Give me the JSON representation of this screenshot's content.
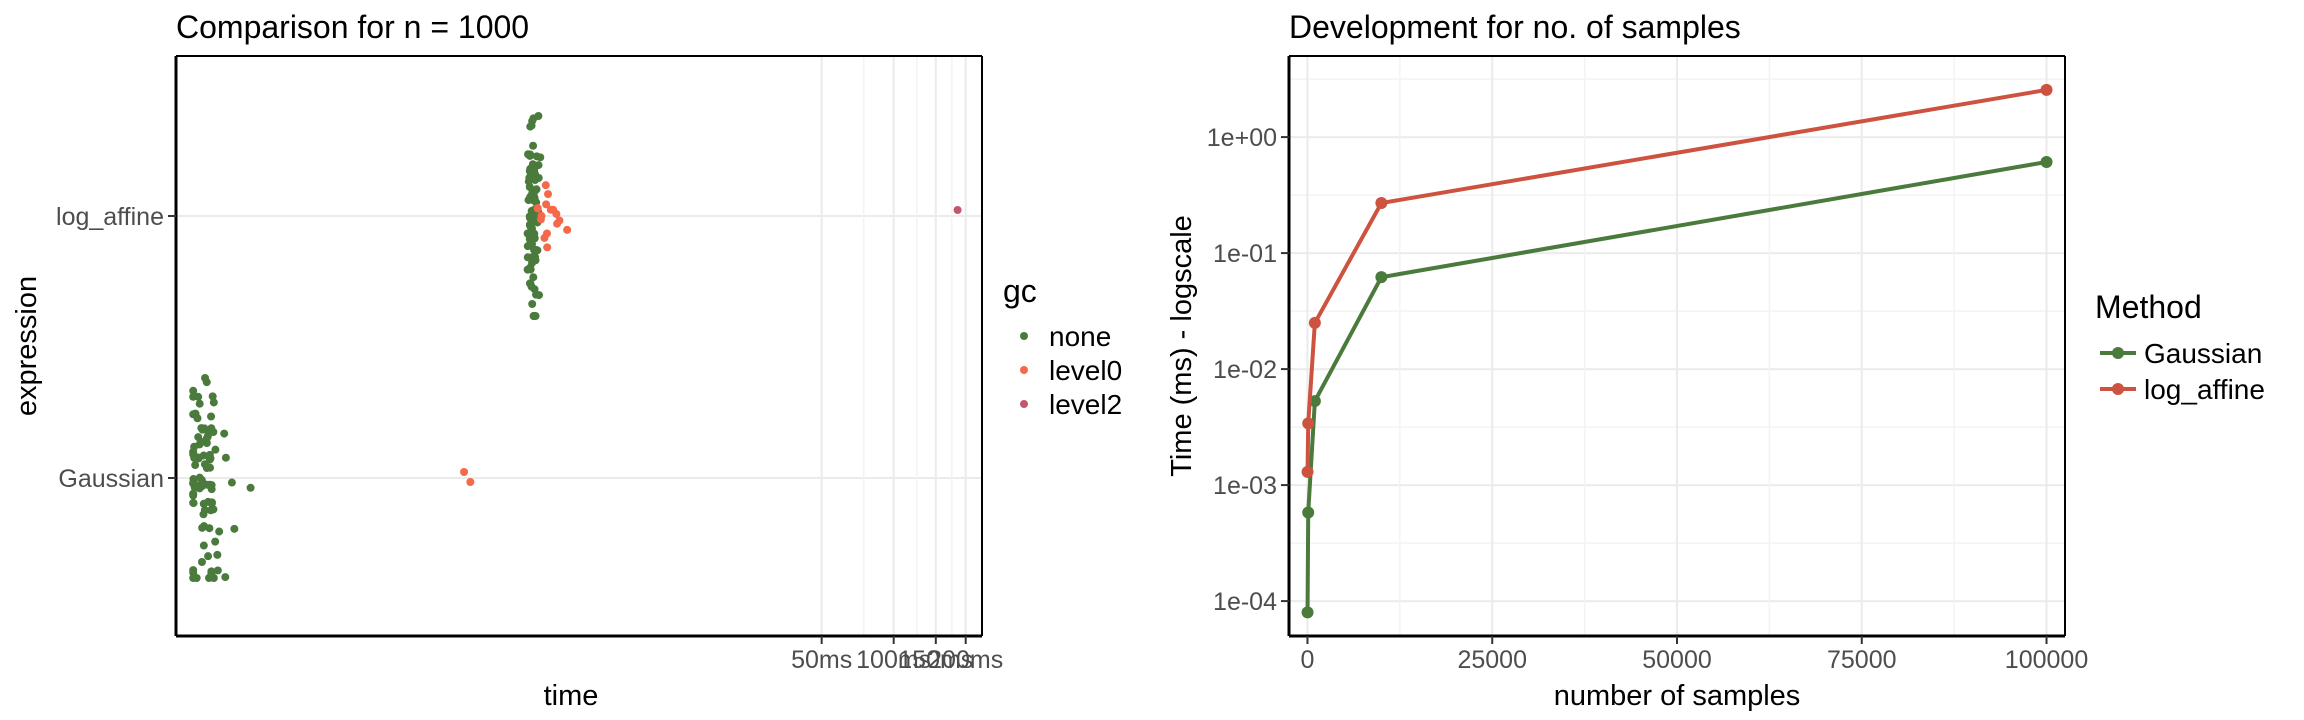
{
  "colors": {
    "none": "#4a7a3c",
    "level0": "#f4694a",
    "level2": "#c2566e",
    "Gaussian": "#4a7a3c",
    "log_affine": "#cd5340",
    "grid": "#ebebeb"
  },
  "chart_data": [
    {
      "type": "scatter",
      "subtype": "beeswarm",
      "title": "Comparison for n = 1000",
      "xlabel": "time",
      "ylabel": "expression",
      "x_scale": "log",
      "categories": [
        "Gaussian",
        "log_affine"
      ],
      "x_ticks": [
        "50ms",
        "100ms",
        "150ms",
        "200ms"
      ],
      "x_tick_values_ms": [
        50,
        100,
        150,
        200
      ],
      "x_range_ms": [
        0.1,
        234
      ],
      "grid": true,
      "legend_position": "right",
      "legend": {
        "title": "gc",
        "items": [
          "none",
          "level0",
          "level2"
        ]
      },
      "series": [
        {
          "category": "Gaussian",
          "gc": "none",
          "count": 95,
          "median_ms": 0.13,
          "min_ms": 0.118,
          "max_ms": 0.205
        },
        {
          "category": "Gaussian",
          "gc": "level0",
          "values_ms": [
            1.6,
            1.7
          ]
        },
        {
          "category": "log_affine",
          "gc": "none",
          "count": 90,
          "median_ms": 3.1,
          "min_ms": 2.95,
          "max_ms": 3.4
        },
        {
          "category": "log_affine",
          "gc": "level0",
          "count": 16,
          "median_ms": 3.75,
          "min_ms": 3.25,
          "max_ms": 5.0
        },
        {
          "category": "log_affine",
          "gc": "level2",
          "values_ms": [
            185
          ]
        }
      ]
    },
    {
      "type": "line",
      "title": "Development for no. of samples",
      "xlabel": "number of samples",
      "ylabel": "Time (ms) - logscale",
      "y_scale": "log",
      "x_range": [
        -2500,
        102500
      ],
      "y_range": [
        5e-05,
        5
      ],
      "x_ticks": [
        "0",
        "25000",
        "50000",
        "75000",
        "100000"
      ],
      "x_tick_values": [
        0,
        25000,
        50000,
        75000,
        100000
      ],
      "y_ticks": [
        "1e-04",
        "1e-03",
        "1e-02",
        "1e-01",
        "1e+00"
      ],
      "y_tick_values": [
        0.0001,
        0.001,
        0.01,
        0.1,
        1
      ],
      "grid": true,
      "legend_position": "right",
      "legend": {
        "title": "Method",
        "items": [
          "Gaussian",
          "log_affine"
        ]
      },
      "x": [
        10,
        100,
        1000,
        10000,
        100000
      ],
      "series": [
        {
          "name": "Gaussian",
          "values": [
            8e-05,
            0.00058,
            0.0053,
            0.062,
            0.61
          ]
        },
        {
          "name": "log_affine",
          "values": [
            0.0013,
            0.0034,
            0.025,
            0.27,
            2.55
          ]
        }
      ]
    }
  ]
}
